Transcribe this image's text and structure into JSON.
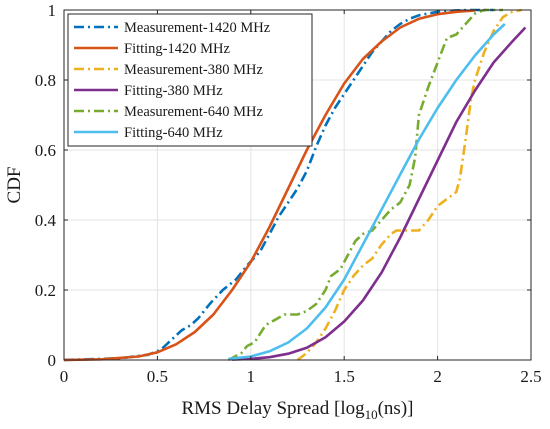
{
  "chart_data": {
    "type": "line",
    "title": "",
    "xlabel": {
      "main": "RMS Delay Spread [log",
      "sub": "10",
      "tail": "(ns)]"
    },
    "ylabel": "CDF",
    "xlim": [
      0,
      2.5
    ],
    "ylim": [
      0,
      1
    ],
    "x_ticks": [
      "0",
      "0.5",
      "1",
      "1.5",
      "2",
      "2.5"
    ],
    "y_ticks": [
      "0",
      "0.2",
      "0.4",
      "0.6",
      "0.8",
      "1"
    ],
    "grid": true,
    "legend_position": "top-left",
    "series": [
      {
        "name": "Measurement-1420 MHz",
        "style": "dashdot",
        "color": "#0072BD",
        "x": [
          0.0,
          0.3,
          0.45,
          0.52,
          0.58,
          0.63,
          0.68,
          0.72,
          0.78,
          0.85,
          0.92,
          0.98,
          1.05,
          1.1,
          1.15,
          1.2,
          1.25,
          1.3,
          1.35,
          1.4,
          1.45,
          1.5,
          1.55,
          1.6,
          1.65,
          1.7,
          1.75,
          1.8,
          1.85,
          1.9,
          1.95,
          2.0,
          2.05,
          2.1,
          2.2,
          2.3
        ],
        "y": [
          0.0,
          0.005,
          0.015,
          0.03,
          0.06,
          0.085,
          0.1,
          0.12,
          0.16,
          0.2,
          0.23,
          0.27,
          0.31,
          0.36,
          0.41,
          0.45,
          0.49,
          0.54,
          0.61,
          0.67,
          0.72,
          0.76,
          0.8,
          0.84,
          0.88,
          0.91,
          0.94,
          0.96,
          0.975,
          0.985,
          0.99,
          0.995,
          0.997,
          0.999,
          1.0,
          1.0
        ]
      },
      {
        "name": "Fitting-1420 MHz",
        "style": "solid",
        "color": "#D95319",
        "x": [
          0.0,
          0.2,
          0.4,
          0.5,
          0.6,
          0.7,
          0.8,
          0.9,
          1.0,
          1.1,
          1.2,
          1.3,
          1.4,
          1.5,
          1.6,
          1.7,
          1.8,
          1.9,
          2.0,
          2.1,
          2.2
        ],
        "y": [
          0.0,
          0.002,
          0.01,
          0.022,
          0.045,
          0.08,
          0.13,
          0.2,
          0.28,
          0.38,
          0.49,
          0.6,
          0.7,
          0.79,
          0.86,
          0.91,
          0.95,
          0.975,
          0.988,
          0.995,
          0.999
        ]
      },
      {
        "name": "Measurement-380 MHz",
        "style": "dashdot",
        "color": "#EDB120",
        "x": [
          1.25,
          1.3,
          1.35,
          1.4,
          1.45,
          1.5,
          1.55,
          1.6,
          1.65,
          1.7,
          1.75,
          1.78,
          1.8,
          1.85,
          1.9,
          1.95,
          2.0,
          2.05,
          2.1,
          2.12,
          2.15,
          2.18,
          2.2,
          2.25,
          2.3,
          2.35,
          2.4,
          2.45
        ],
        "y": [
          0.0,
          0.02,
          0.05,
          0.09,
          0.14,
          0.2,
          0.24,
          0.27,
          0.29,
          0.33,
          0.36,
          0.37,
          0.37,
          0.37,
          0.37,
          0.4,
          0.44,
          0.46,
          0.48,
          0.52,
          0.63,
          0.75,
          0.8,
          0.88,
          0.94,
          0.98,
          0.995,
          1.0
        ]
      },
      {
        "name": "Fitting-380 MHz",
        "style": "solid",
        "color": "#7E2F8E",
        "x": [
          0.9,
          1.0,
          1.1,
          1.2,
          1.3,
          1.4,
          1.5,
          1.6,
          1.7,
          1.8,
          1.9,
          2.0,
          2.1,
          2.2,
          2.3,
          2.4,
          2.47
        ],
        "y": [
          0.001,
          0.003,
          0.008,
          0.018,
          0.035,
          0.065,
          0.11,
          0.17,
          0.25,
          0.35,
          0.46,
          0.57,
          0.68,
          0.77,
          0.85,
          0.91,
          0.95
        ]
      },
      {
        "name": "Measurement-640 MHz",
        "style": "dashdot",
        "color": "#77AC30",
        "x": [
          0.88,
          0.95,
          0.98,
          1.02,
          1.08,
          1.13,
          1.18,
          1.25,
          1.3,
          1.35,
          1.4,
          1.43,
          1.48,
          1.52,
          1.56,
          1.6,
          1.65,
          1.7,
          1.75,
          1.8,
          1.85,
          1.88,
          1.9,
          1.95,
          2.0,
          2.05,
          2.1,
          2.15,
          2.2,
          2.25,
          2.3,
          2.35
        ],
        "y": [
          0.0,
          0.02,
          0.04,
          0.05,
          0.1,
          0.115,
          0.13,
          0.13,
          0.14,
          0.16,
          0.2,
          0.24,
          0.26,
          0.3,
          0.34,
          0.36,
          0.37,
          0.4,
          0.43,
          0.45,
          0.5,
          0.58,
          0.7,
          0.78,
          0.85,
          0.92,
          0.93,
          0.96,
          0.99,
          1.0,
          1.0,
          1.0
        ]
      },
      {
        "name": "Fitting-640 MHz",
        "style": "solid",
        "color": "#4DBEEE",
        "x": [
          0.88,
          1.0,
          1.1,
          1.2,
          1.3,
          1.4,
          1.5,
          1.6,
          1.7,
          1.8,
          1.9,
          2.0,
          2.1,
          2.2,
          2.3,
          2.36
        ],
        "y": [
          0.003,
          0.01,
          0.025,
          0.05,
          0.09,
          0.15,
          0.23,
          0.33,
          0.43,
          0.53,
          0.63,
          0.72,
          0.8,
          0.87,
          0.93,
          0.96
        ]
      }
    ]
  }
}
